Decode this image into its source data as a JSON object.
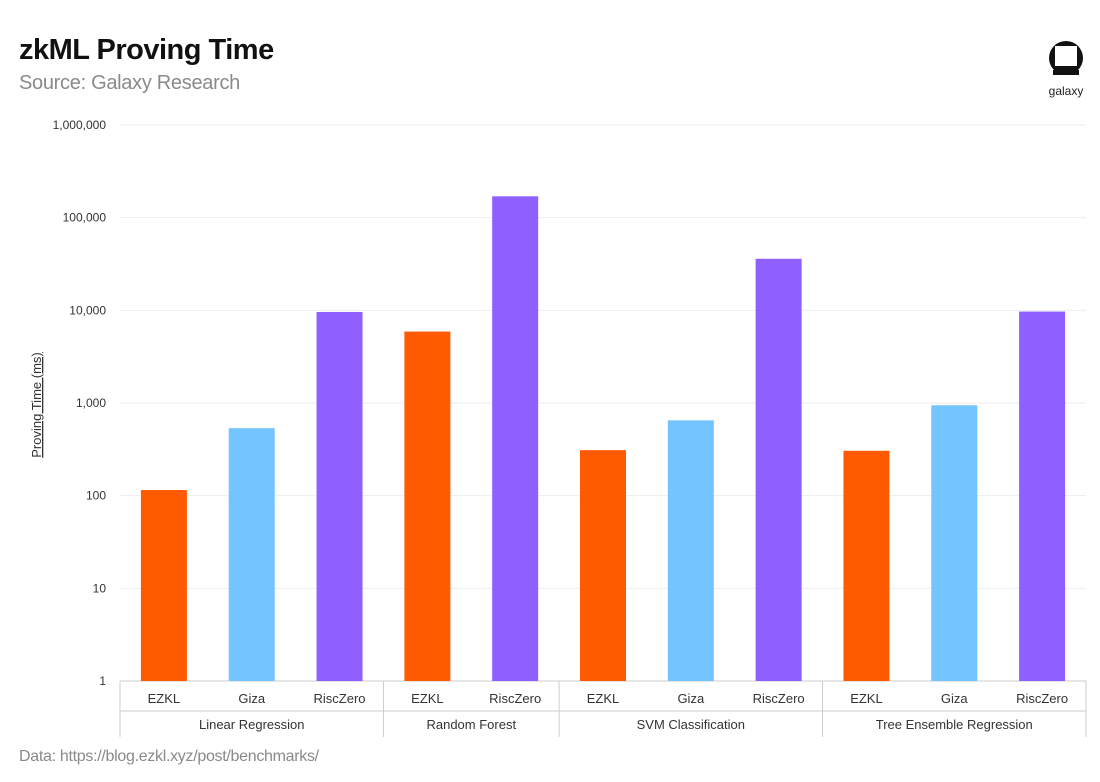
{
  "header": {
    "title": "zkML Proving Time",
    "subtitle": "Source: Galaxy Research"
  },
  "footer": {
    "note": "Data: https://blog.ezkl.xyz/post/benchmarks/"
  },
  "logo": {
    "text": "galaxy",
    "icon": "galaxy-logo-icon"
  },
  "colors": {
    "EZKL": "#ff5a00",
    "Giza": "#73c4ff",
    "RiscZero": "#8f5fff",
    "grid": "#eeeeee",
    "axis": "#cccccc",
    "text": "#333333"
  },
  "chart_data": {
    "type": "bar",
    "title": "zkML Proving Time",
    "ylabel": "Proving Time (ms)",
    "xlabel": "",
    "yscale": "log",
    "ylim": [
      1,
      1000000
    ],
    "yticks": [
      "1",
      "10",
      "100",
      "1,000",
      "10,000",
      "100,000",
      "1,000,000"
    ],
    "grid": true,
    "legend": "none",
    "groups": [
      {
        "name": "Linear Regression",
        "bars": [
          {
            "label": "EZKL",
            "value": 115
          },
          {
            "label": "Giza",
            "value": 535
          },
          {
            "label": "RiscZero",
            "value": 9600
          }
        ]
      },
      {
        "name": "Random Forest",
        "bars": [
          {
            "label": "EZKL",
            "value": 5900
          },
          {
            "label": "RiscZero",
            "value": 170000
          }
        ]
      },
      {
        "name": "SVM Classification",
        "bars": [
          {
            "label": "EZKL",
            "value": 310
          },
          {
            "label": "Giza",
            "value": 650
          },
          {
            "label": "RiscZero",
            "value": 36000
          }
        ]
      },
      {
        "name": "Tree Ensemble Regression",
        "bars": [
          {
            "label": "EZKL",
            "value": 305
          },
          {
            "label": "Giza",
            "value": 945
          },
          {
            "label": "RiscZero",
            "value": 9700
          }
        ]
      }
    ]
  }
}
